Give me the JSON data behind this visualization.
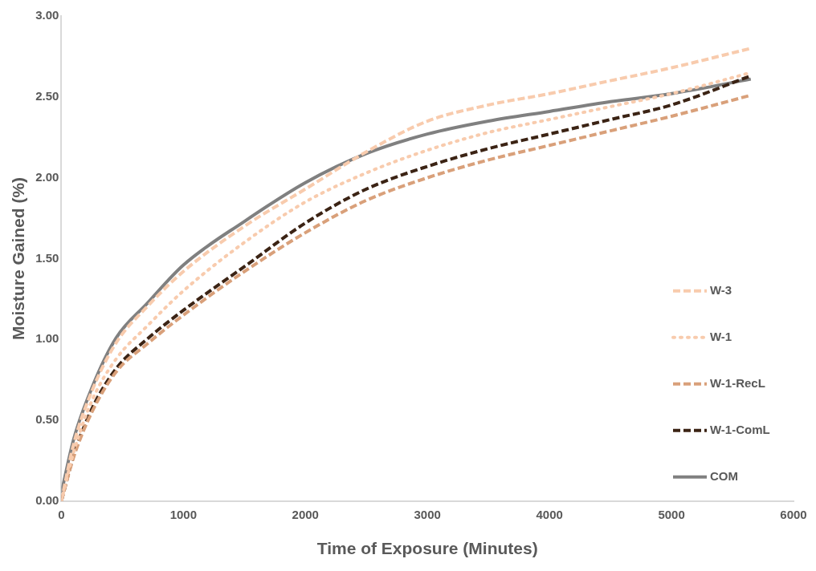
{
  "chart_data": {
    "type": "line",
    "xlabel": "Time of Exposure (Minutes)",
    "ylabel": "Moisture Gained (%)",
    "x": [
      0,
      100,
      250,
      450,
      700,
      1000,
      1500,
      2000,
      2500,
      3000,
      3500,
      4000,
      4500,
      5000,
      5650
    ],
    "xlim": [
      0,
      6000
    ],
    "xticks": [
      0,
      1000,
      2000,
      3000,
      4000,
      5000,
      6000
    ],
    "ylim": [
      0,
      3
    ],
    "yticks": [
      {
        "value": 0,
        "label": "0.00"
      },
      {
        "value": 0.5,
        "label": "0.50"
      },
      {
        "value": 1,
        "label": "1.00"
      },
      {
        "value": 1.5,
        "label": "1.50"
      },
      {
        "value": 2,
        "label": "2.00"
      },
      {
        "value": 2.5,
        "label": "2.50"
      },
      {
        "value": 3,
        "label": "3.00"
      }
    ],
    "grid": false,
    "legend": "bottom right",
    "marker": "none",
    "series": [
      {
        "name": "W-3",
        "color": "#f8cbad",
        "line_style": "dashed",
        "values": [
          0,
          0.35,
          0.68,
          0.98,
          1.2,
          1.42,
          1.7,
          1.93,
          2.16,
          2.35,
          2.45,
          2.52,
          2.6,
          2.68,
          2.8
        ]
      },
      {
        "name": "W-1",
        "color": "#f8cbad",
        "line_style": "dotted",
        "values": [
          0,
          0.3,
          0.62,
          0.88,
          1.08,
          1.3,
          1.6,
          1.85,
          2.03,
          2.17,
          2.28,
          2.36,
          2.44,
          2.52,
          2.65
        ]
      },
      {
        "name": "W-1-RecL",
        "color": "#d9a07a",
        "line_style": "dashed",
        "values": [
          0,
          0.27,
          0.55,
          0.8,
          0.97,
          1.15,
          1.42,
          1.66,
          1.86,
          2.0,
          2.11,
          2.2,
          2.29,
          2.38,
          2.51
        ]
      },
      {
        "name": "W-1-ComL",
        "color": "#3b2314",
        "line_style": "dashed",
        "values": [
          0,
          0.28,
          0.57,
          0.82,
          1.0,
          1.18,
          1.45,
          1.72,
          1.93,
          2.07,
          2.18,
          2.27,
          2.36,
          2.45,
          2.63
        ]
      },
      {
        "name": "COM",
        "color": "#808080",
        "line_style": "solid",
        "values": [
          0.05,
          0.38,
          0.7,
          1.01,
          1.22,
          1.46,
          1.73,
          1.97,
          2.15,
          2.27,
          2.35,
          2.41,
          2.47,
          2.52,
          2.61
        ]
      }
    ]
  }
}
